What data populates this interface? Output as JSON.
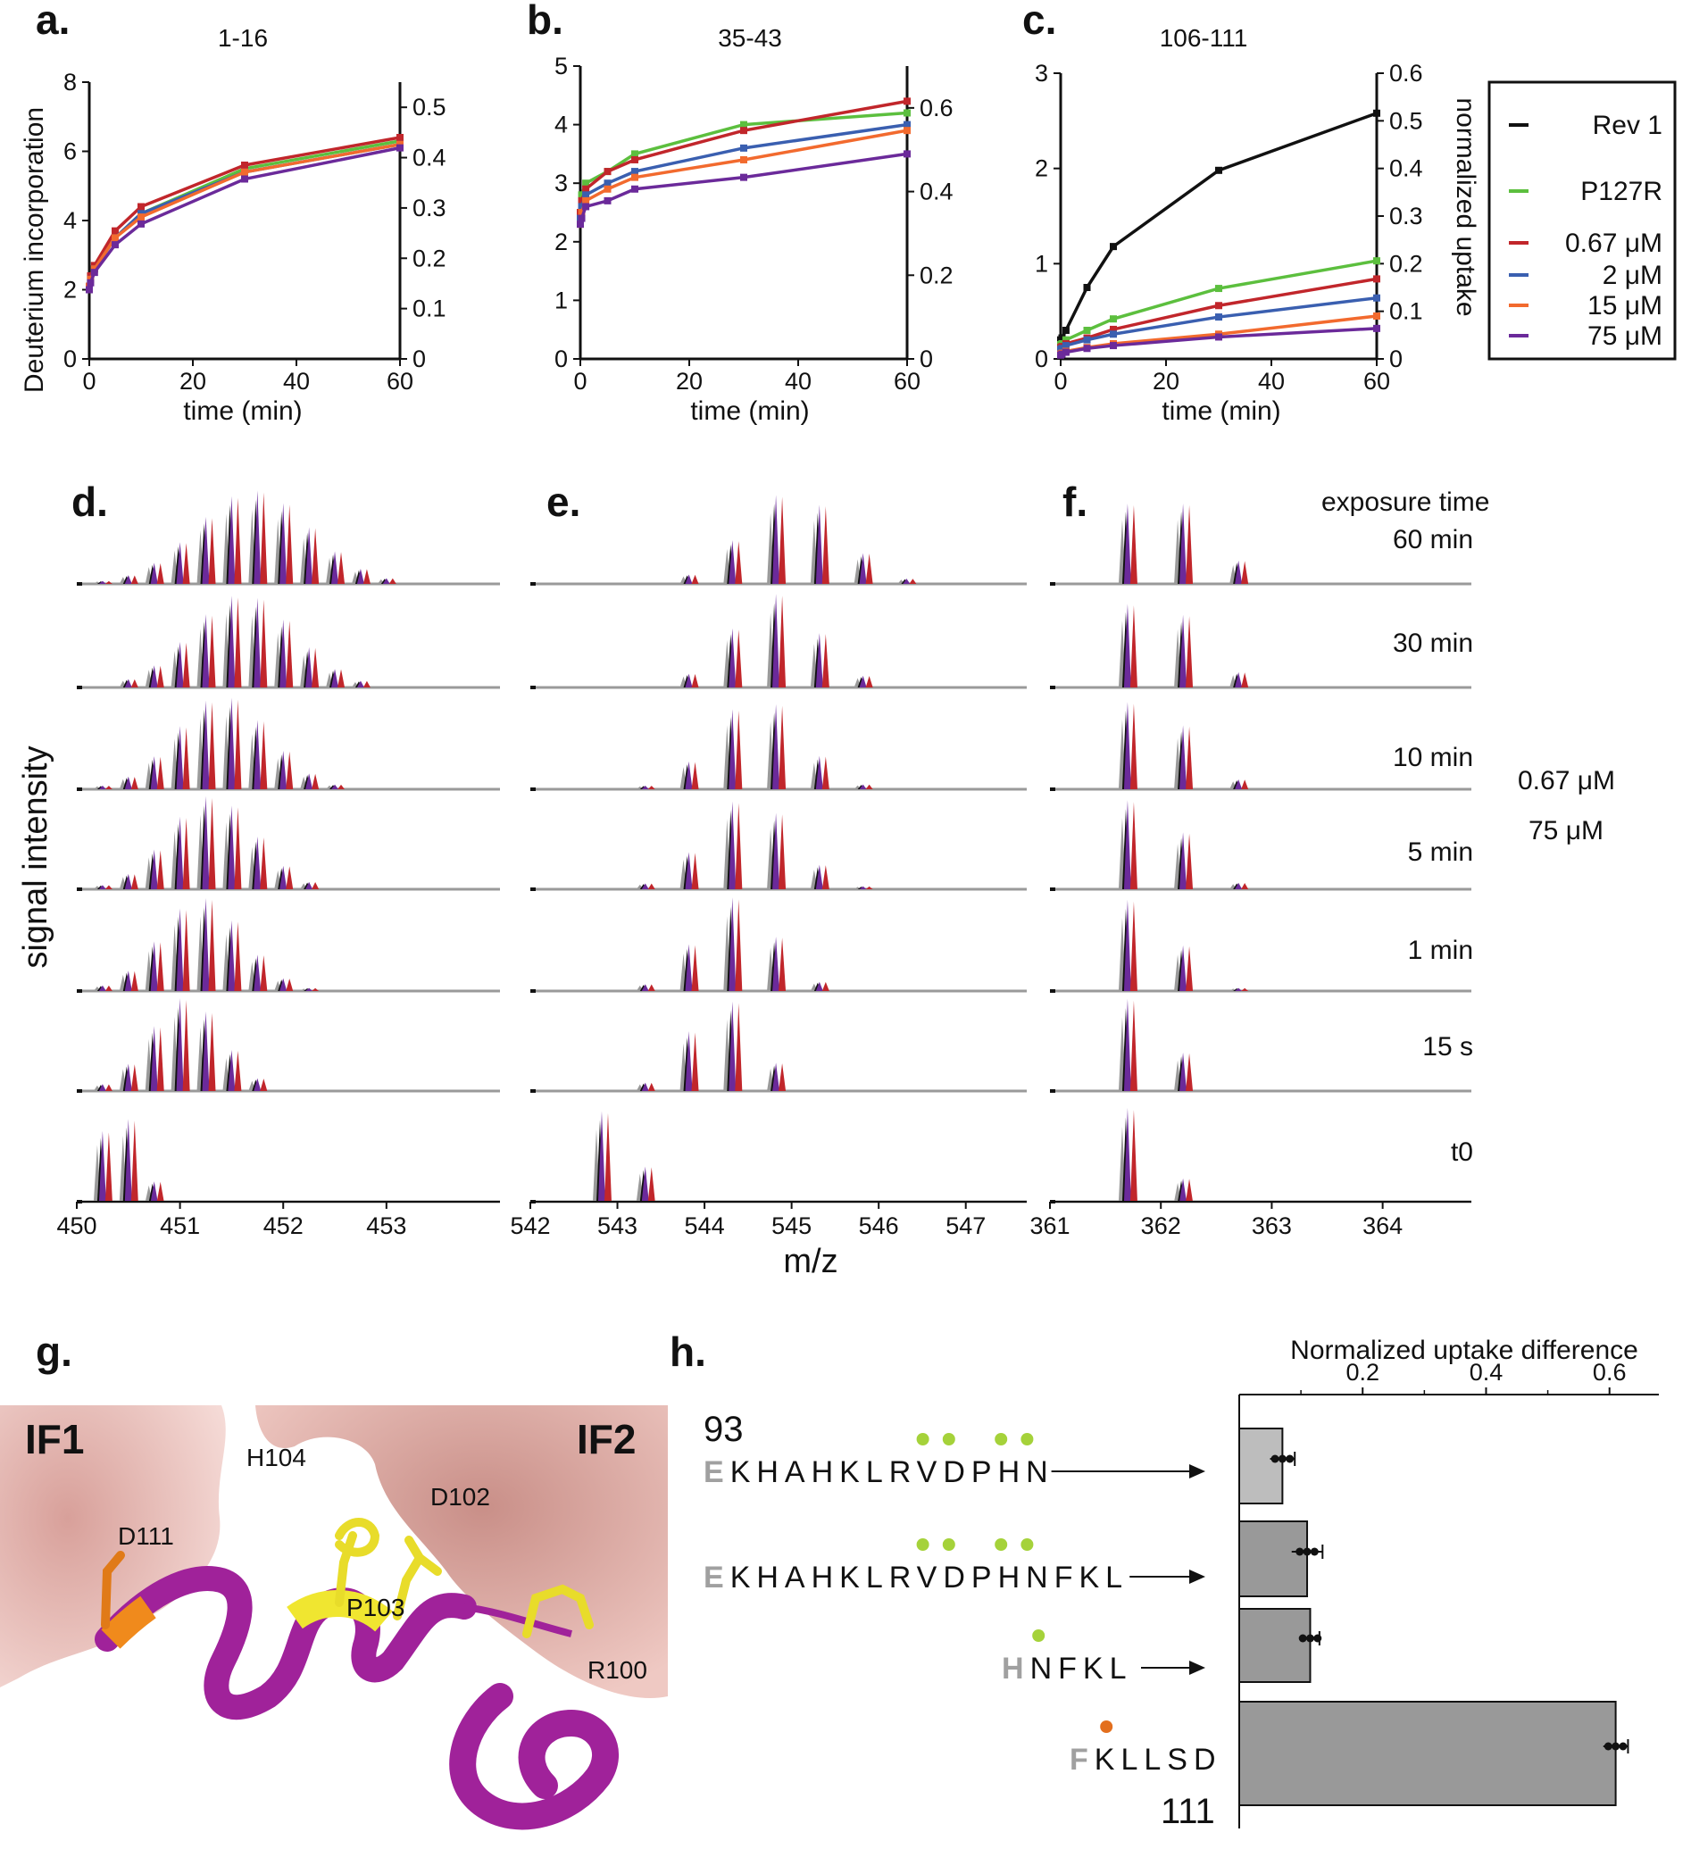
{
  "colors": {
    "rev1": "#111111",
    "p127r": "#5cbf3e",
    "c067": "#c1262b",
    "c2": "#3a5fb0",
    "c15": "#f26a2e",
    "c75": "#6b2a9a",
    "spec_grey": "#9a9a9a",
    "seq_green": "#a5d23a",
    "seq_orange": "#e36f1e",
    "bar_light": "#bdbdbd",
    "bar_dark": "#999999",
    "helix": "#a0229a",
    "helix_yellow": "#f0e630",
    "helix_orange": "#f08a1c",
    "surface": "#e8b4ad"
  },
  "panels": {
    "a": {
      "label": "a.",
      "title": "1-16"
    },
    "b": {
      "label": "b.",
      "title": "35-43"
    },
    "c": {
      "label": "c.",
      "title": "106-111"
    },
    "d": {
      "label": "d."
    },
    "e": {
      "label": "e."
    },
    "f": {
      "label": "f."
    },
    "g": {
      "label": "g."
    },
    "h": {
      "label": "h."
    }
  },
  "axes": {
    "ylabel_left": "Deuterium incorporation",
    "ylabel_right": "normalized uptake",
    "xlabel_time": "time (min)",
    "ylabel_spectra": "signal intensity",
    "xlabel_spectra": "m/z",
    "h_title": "Normalized uptake difference"
  },
  "legend": [
    "Rev 1",
    "P127R",
    "0.67 μM",
    "2 μM",
    "15 μM",
    "75 μM"
  ],
  "chart_data": [
    {
      "panel": "a",
      "type": "line",
      "title": "1-16",
      "xlabel": "time (min)",
      "ylabel": "Deuterium incorporation",
      "ylabel_right": "",
      "x": [
        0,
        0.25,
        1,
        5,
        10,
        30,
        60
      ],
      "xlim": [
        0,
        60
      ],
      "ylim": [
        0,
        8
      ],
      "ylim_right": [
        0,
        0.55
      ],
      "xticks": [
        0,
        20,
        40,
        60
      ],
      "yticks": [
        0,
        2,
        4,
        6,
        8
      ],
      "yticks_right": [
        0,
        0.1,
        0.2,
        0.3,
        0.4,
        0.5
      ],
      "series": [
        {
          "name": "P127R",
          "color": "#5cbf3e",
          "values": [
            2.1,
            2.3,
            2.6,
            3.5,
            4.2,
            5.5,
            6.3
          ]
        },
        {
          "name": "0.67 μM",
          "color": "#c1262b",
          "values": [
            2.1,
            2.4,
            2.7,
            3.7,
            4.4,
            5.6,
            6.4
          ]
        },
        {
          "name": "2 μM",
          "color": "#3a5fb0",
          "values": [
            2.1,
            2.3,
            2.6,
            3.5,
            4.2,
            5.4,
            6.2
          ]
        },
        {
          "name": "15 μM",
          "color": "#f26a2e",
          "values": [
            2.1,
            2.3,
            2.6,
            3.5,
            4.1,
            5.4,
            6.2
          ]
        },
        {
          "name": "75 μM",
          "color": "#6b2a9a",
          "values": [
            2.0,
            2.2,
            2.5,
            3.3,
            3.9,
            5.2,
            6.1
          ]
        }
      ]
    },
    {
      "panel": "b",
      "type": "line",
      "title": "35-43",
      "xlabel": "time (min)",
      "ylabel": "",
      "ylabel_right": "",
      "x": [
        0,
        0.25,
        1,
        5,
        10,
        30,
        60
      ],
      "xlim": [
        0,
        60
      ],
      "ylim": [
        0,
        5
      ],
      "ylim_right": [
        0,
        0.7
      ],
      "xticks": [
        0,
        20,
        40,
        60
      ],
      "yticks": [
        0,
        1,
        2,
        3,
        4,
        5
      ],
      "yticks_right": [
        0,
        0.2,
        0.4,
        0.6
      ],
      "series": [
        {
          "name": "P127R",
          "color": "#5cbf3e",
          "values": [
            2.5,
            2.8,
            3.0,
            3.2,
            3.5,
            4.0,
            4.2
          ]
        },
        {
          "name": "0.67 μM",
          "color": "#c1262b",
          "values": [
            2.5,
            2.7,
            2.9,
            3.2,
            3.4,
            3.9,
            4.4
          ]
        },
        {
          "name": "2 μM",
          "color": "#3a5fb0",
          "values": [
            2.4,
            2.6,
            2.8,
            3.0,
            3.2,
            3.6,
            4.0
          ]
        },
        {
          "name": "15 μM",
          "color": "#f26a2e",
          "values": [
            2.3,
            2.5,
            2.7,
            2.9,
            3.1,
            3.4,
            3.9
          ]
        },
        {
          "name": "75 μM",
          "color": "#6b2a9a",
          "values": [
            2.3,
            2.4,
            2.6,
            2.7,
            2.9,
            3.1,
            3.5
          ]
        }
      ]
    },
    {
      "panel": "c",
      "type": "line",
      "title": "106-111",
      "xlabel": "time (min)",
      "ylabel": "",
      "ylabel_right": "normalized uptake",
      "x": [
        0,
        0.25,
        1,
        5,
        10,
        30,
        60
      ],
      "xlim": [
        0,
        60
      ],
      "ylim": [
        0,
        3
      ],
      "ylim_right": [
        0,
        0.6
      ],
      "xticks": [
        0,
        20,
        40,
        60
      ],
      "yticks": [
        0,
        1,
        2,
        3
      ],
      "yticks_right": [
        0,
        0.1,
        0.2,
        0.3,
        0.4,
        0.5,
        0.6
      ],
      "series": [
        {
          "name": "Rev 1",
          "color": "#111111",
          "values": [
            0.2,
            0.22,
            0.3,
            0.75,
            1.18,
            1.98,
            2.58
          ]
        },
        {
          "name": "P127R",
          "color": "#5cbf3e",
          "values": [
            0.15,
            0.16,
            0.2,
            0.3,
            0.42,
            0.74,
            1.03
          ]
        },
        {
          "name": "0.67 μM",
          "color": "#c1262b",
          "values": [
            0.12,
            0.13,
            0.16,
            0.22,
            0.31,
            0.56,
            0.84
          ]
        },
        {
          "name": "2 μM",
          "color": "#3a5fb0",
          "values": [
            0.1,
            0.11,
            0.14,
            0.2,
            0.26,
            0.44,
            0.64
          ]
        },
        {
          "name": "15 μM",
          "color": "#f26a2e",
          "values": [
            0.05,
            0.06,
            0.08,
            0.12,
            0.16,
            0.26,
            0.45
          ]
        },
        {
          "name": "75 μM",
          "color": "#6b2a9a",
          "values": [
            0.04,
            0.05,
            0.07,
            0.11,
            0.14,
            0.23,
            0.32
          ]
        }
      ]
    },
    {
      "panel": "d",
      "type": "spectrum",
      "xlabel": "m/z",
      "ylabel": "signal intensity",
      "xlim": [
        450,
        454.1
      ],
      "xticks": [
        450,
        451,
        452,
        453
      ],
      "peak_spacing": 0.25,
      "first_peak": 450.25,
      "n_peaks": 18,
      "rows": [
        {
          "time": "60 min",
          "centroid": 451.7,
          "width": 0.55
        },
        {
          "time": "30 min",
          "centroid": 451.6,
          "width": 0.5
        },
        {
          "time": "10 min",
          "centroid": 451.4,
          "width": 0.45
        },
        {
          "time": "5 min",
          "centroid": 451.3,
          "width": 0.42
        },
        {
          "time": "1 min",
          "centroid": 451.2,
          "width": 0.4
        },
        {
          "time": "15 s",
          "centroid": 451.05,
          "width": 0.35
        },
        {
          "time": "t0",
          "centroid": 450.4,
          "width": 0.2
        }
      ]
    },
    {
      "panel": "e",
      "type": "spectrum",
      "xlabel": "m/z",
      "xlim": [
        542,
        547.7
      ],
      "xticks": [
        542,
        543,
        544,
        545,
        546,
        547
      ],
      "peak_spacing": 0.5,
      "first_peak": 542.82,
      "n_peaks": 9,
      "rows": [
        {
          "time": "60 min",
          "centroid": 545.0,
          "width": 0.55
        },
        {
          "time": "30 min",
          "centroid": 544.8,
          "width": 0.5
        },
        {
          "time": "10 min",
          "centroid": 544.6,
          "width": 0.5
        },
        {
          "time": "5 min",
          "centroid": 544.5,
          "width": 0.5
        },
        {
          "time": "1 min",
          "centroid": 544.35,
          "width": 0.45
        },
        {
          "time": "15 s",
          "centroid": 544.2,
          "width": 0.4
        },
        {
          "time": "t0",
          "centroid": 542.9,
          "width": 0.3
        }
      ]
    },
    {
      "panel": "f",
      "type": "spectrum",
      "xlabel": "m/z",
      "xlim": [
        361,
        364.8
      ],
      "xticks": [
        361,
        362,
        363,
        364
      ],
      "peak_spacing": 0.5,
      "first_peak": 361.7,
      "n_peaks": 5,
      "rows": [
        {
          "time": "60 min",
          "centroid": 361.95,
          "width": 0.45
        },
        {
          "time": "30 min",
          "centroid": 361.9,
          "width": 0.42
        },
        {
          "time": "10 min",
          "centroid": 361.85,
          "width": 0.4
        },
        {
          "time": "5 min",
          "centroid": 361.82,
          "width": 0.38
        },
        {
          "time": "1 min",
          "centroid": 361.78,
          "width": 0.35
        },
        {
          "time": "15 s",
          "centroid": 361.76,
          "width": 0.33
        },
        {
          "time": "t0",
          "centroid": 361.7,
          "width": 0.3
        }
      ]
    },
    {
      "panel": "h",
      "type": "bar",
      "title": "Normalized uptake difference",
      "xlim": [
        0,
        0.68
      ],
      "xticks": [
        0.2,
        0.4,
        0.6
      ],
      "categories": [
        "EKHAHKLRVDPHN",
        "EKHAHKLRVDPHNFKL",
        "HNFKL",
        "FKLLSD"
      ],
      "values": [
        0.07,
        0.11,
        0.115,
        0.61
      ],
      "errors": [
        0.02,
        0.025,
        0.015,
        0.02
      ]
    }
  ],
  "spectra": {
    "header": "exposure time",
    "times": [
      "60 min",
      "30 min",
      "10 min",
      "5 min",
      "1 min",
      "15 s",
      "t0"
    ],
    "conc_red": "0.67 μM",
    "conc_purple": "75 μM"
  },
  "structure": {
    "if1": "IF1",
    "if2": "IF2",
    "residues": [
      "H104",
      "D102",
      "D111",
      "P103",
      "R100"
    ]
  },
  "sequence": {
    "start": "93",
    "end": "111",
    "rows": [
      {
        "first": "E",
        "rest": "KHAHKLRVDPHN",
        "dots": [
          7,
          8,
          10,
          11
        ],
        "dot_color": "green"
      },
      {
        "first": "E",
        "rest": "KHAHKLRVDPHNFKL",
        "dots": [
          7,
          8,
          10,
          11
        ],
        "dot_color": "green"
      },
      {
        "first": "H",
        "rest": "NFKL",
        "dots": [
          0
        ],
        "dot_color": "green"
      },
      {
        "first": "F",
        "rest": "KLLSD",
        "dots": [
          0
        ],
        "dot_color": "orange"
      }
    ]
  }
}
